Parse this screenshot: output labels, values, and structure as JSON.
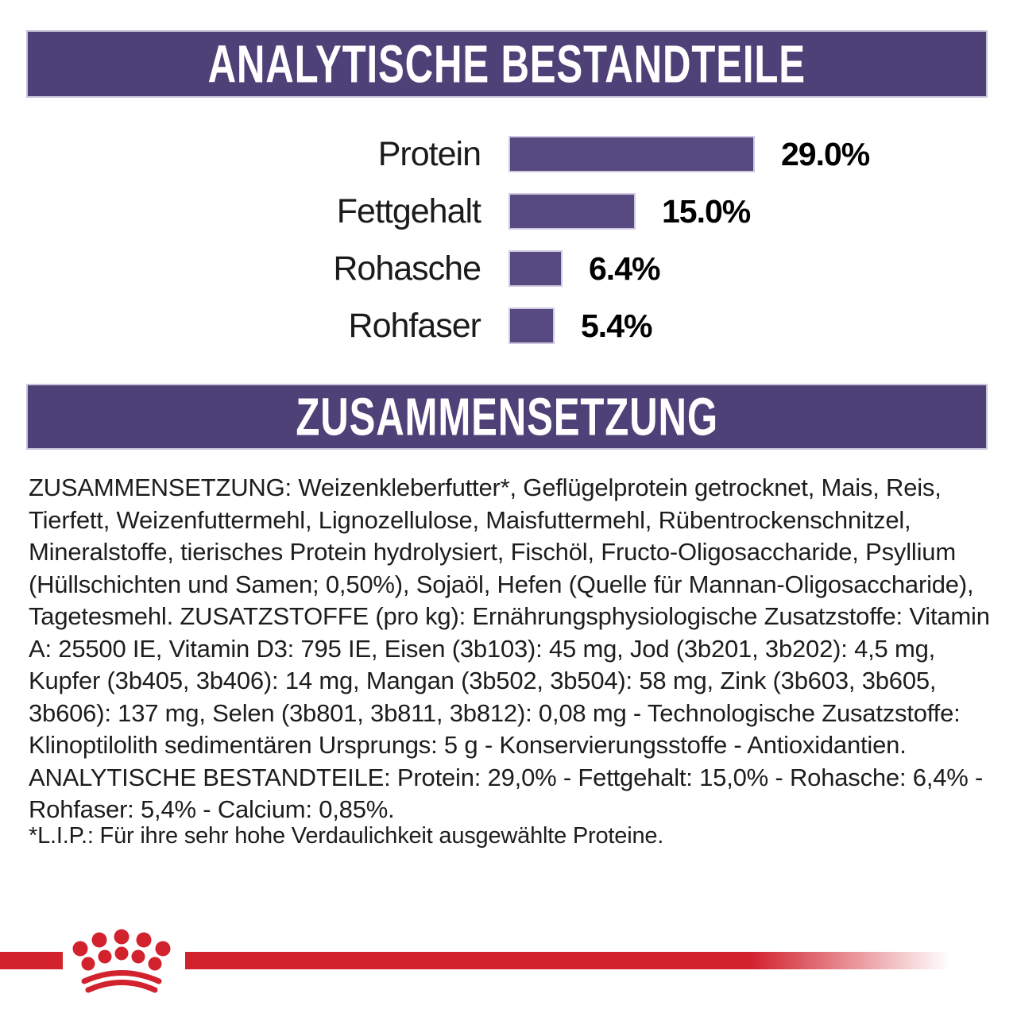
{
  "banners": {
    "analytical": "ANALYTISCHE BESTANDTEILE",
    "composition": "ZUSAMMENSETZUNG"
  },
  "chart_data": {
    "type": "bar",
    "orientation": "horizontal",
    "title": "ANALYTISCHE BESTANDTEILE",
    "categories": [
      "Protein",
      "Fettgehalt",
      "Rohasche",
      "Rohfaser"
    ],
    "values": [
      29.0,
      15.0,
      6.4,
      5.4
    ],
    "value_labels": [
      "29.0%",
      "15.0%",
      "6.4%",
      "5.4%"
    ],
    "xlim": [
      0,
      29
    ],
    "bar_color": "#564A80",
    "grid": "off",
    "legend": "none"
  },
  "composition": {
    "body": "ZUSAMMENSETZUNG: Weizenkleberfutter*, Geflügelprotein getrocknet, Mais, Reis, Tierfett, Weizenfuttermehl, Lignozellulose, Maisfuttermehl, Rübentrockenschnitzel, Mineralstoffe, tierisches Protein hydrolysiert, Fischöl, Fructo-Oligosaccharide, Psyllium (Hüllschichten und Samen; 0,50%), Sojaöl, Hefen (Quelle für Mannan-Oligosaccharide), Tagetesmehl. ZUSATZSTOFFE (pro kg): Ernährungsphysiologische Zusatzstoffe: Vitamin A: 25500 IE, Vitamin D3: 795 IE, Eisen (3b103): 45 mg, Jod (3b201, 3b202): 4,5 mg, Kupfer (3b405, 3b406): 14 mg, Mangan (3b502, 3b504): 58 mg, Zink (3b603, 3b605, 3b606): 137 mg, Selen (3b801, 3b811, 3b812): 0,08 mg - Technologische Zusatzstoffe: Klinoptilolith sedimentären Ursprungs: 5 g - Konservierungsstoffe - Antioxidantien. ANALYTISCHE BESTANDTEILE: Protein: 29,0% - Fettgehalt: 15,0% - Rohasche: 6,4% - Rohfaser: 5,4% - Calcium: 0,85%."
  },
  "footnote": "*L.I.P.: Für ihre sehr hohe Verdaulichkeit ausgewählte Proteine.",
  "footer": {
    "brand_mark": "royal-canin-crown",
    "accent_red": "#D2222D"
  },
  "colors": {
    "banner_purple": "#4E4178",
    "bar_purple": "#564A80",
    "banner_border": "#C9C3DB",
    "text": "#1D1D1B",
    "background": "#FFFFFF"
  }
}
